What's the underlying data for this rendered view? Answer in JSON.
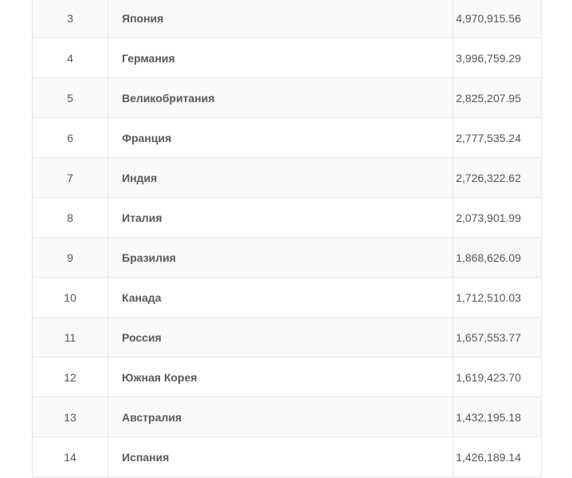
{
  "table": {
    "rows": [
      {
        "rank": "3",
        "country": "Япония",
        "gdp": "4,970,915.56"
      },
      {
        "rank": "4",
        "country": "Германия",
        "gdp": "3,996,759.29"
      },
      {
        "rank": "5",
        "country": "Великобритания",
        "gdp": "2,825,207.95"
      },
      {
        "rank": "6",
        "country": "Франция",
        "gdp": "2,777,535.24"
      },
      {
        "rank": "7",
        "country": "Индия",
        "gdp": "2,726,322.62"
      },
      {
        "rank": "8",
        "country": "Италия",
        "gdp": "2,073,901.99"
      },
      {
        "rank": "9",
        "country": "Бразилия",
        "gdp": "1,868,626.09"
      },
      {
        "rank": "10",
        "country": "Канада",
        "gdp": "1,712,510.03"
      },
      {
        "rank": "11",
        "country": "Россия",
        "gdp": "1,657,553.77"
      },
      {
        "rank": "12",
        "country": "Южная Корея",
        "gdp": "1,619,423.70"
      },
      {
        "rank": "13",
        "country": "Австралия",
        "gdp": "1,432,195.18"
      },
      {
        "rank": "14",
        "country": "Испания",
        "gdp": "1,426,189.14"
      }
    ]
  }
}
